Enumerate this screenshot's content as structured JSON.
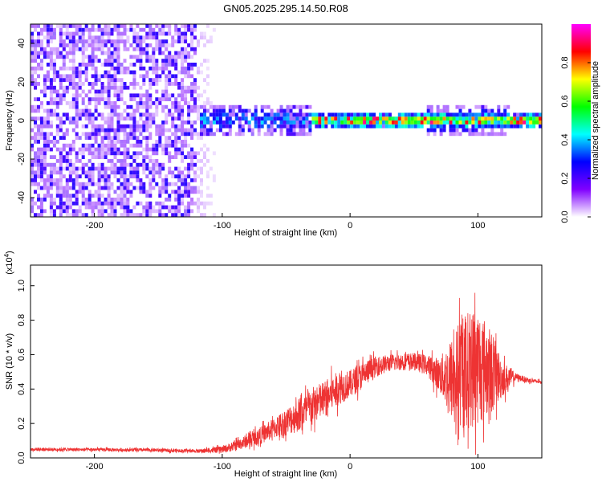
{
  "title": "GN05.2025.295.14.50.R08",
  "chart_data": [
    {
      "type": "heatmap",
      "name": "spectrogram",
      "xlabel": "Height of straight line (km)",
      "ylabel": "Frequency (Hz)",
      "xlim": [
        -250,
        150
      ],
      "ylim": [
        -50,
        50
      ],
      "xticks": [
        -200,
        -100,
        0,
        100
      ],
      "yticks": [
        -40,
        -20,
        0,
        20,
        40
      ],
      "colorbar": {
        "label": "Normalized spectral amplitude",
        "range": [
          0,
          1
        ],
        "ticks": [
          0.0,
          0.2,
          0.4,
          0.6,
          0.8
        ],
        "colors": [
          "#ffffff",
          "#8000ff",
          "#0000ff",
          "#00ffff",
          "#00ff00",
          "#ffff00",
          "#ff0000",
          "#ff00ff"
        ]
      },
      "features": [
        {
          "desc": "noise region",
          "x_range": [
            -250,
            -120
          ],
          "freq_range": [
            -50,
            50
          ],
          "amplitude": 0.15
        },
        {
          "desc": "fading noise",
          "x_range": [
            -120,
            -95
          ],
          "freq_range": [
            -50,
            50
          ],
          "amplitude": 0.05
        },
        {
          "desc": "broad signal band",
          "x_range": [
            -118,
            -30
          ],
          "freq_center": 0,
          "half_width_hz": 8,
          "amplitude": 0.35
        },
        {
          "desc": "narrow signal line",
          "x_range": [
            -30,
            150
          ],
          "freq_center": 0,
          "half_width_hz": 3,
          "amplitude": 0.9
        },
        {
          "desc": "broad signal band",
          "x_range": [
            60,
            125
          ],
          "freq_center": 0,
          "half_width_hz": 7,
          "amplitude": 0.4
        }
      ]
    },
    {
      "type": "line",
      "name": "snr",
      "xlabel": "Height of straight line (km)",
      "ylabel": "SNR (10 * v/v)",
      "y_multiplier": "(x10^4)",
      "multiplier_base": "(x10",
      "multiplier_exp": "4",
      "multiplier_close": ")",
      "xlim": [
        -250,
        150
      ],
      "ylim": [
        0,
        1.12
      ],
      "xticks": [
        -200,
        -100,
        0,
        100
      ],
      "yticks": [
        0.0,
        0.2,
        0.4,
        0.6,
        0.8,
        1.0
      ],
      "series": [
        {
          "name": "SNR",
          "color": "#ee3333",
          "x": [
            -250,
            -200,
            -150,
            -120,
            -100,
            -90,
            -80,
            -70,
            -60,
            -50,
            -40,
            -30,
            -20,
            -10,
            0,
            10,
            20,
            30,
            40,
            50,
            60,
            70,
            80,
            90,
            100,
            110,
            120,
            130,
            140,
            150
          ],
          "y": [
            0.05,
            0.048,
            0.045,
            0.04,
            0.048,
            0.07,
            0.1,
            0.13,
            0.17,
            0.21,
            0.25,
            0.3,
            0.34,
            0.4,
            0.43,
            0.48,
            0.53,
            0.55,
            0.56,
            0.56,
            0.54,
            0.48,
            0.46,
            0.5,
            0.54,
            0.5,
            0.46,
            0.47,
            0.45,
            0.44
          ],
          "noise_amp": [
            0.01,
            0.01,
            0.01,
            0.01,
            0.02,
            0.03,
            0.04,
            0.05,
            0.06,
            0.08,
            0.1,
            0.11,
            0.11,
            0.1,
            0.08,
            0.08,
            0.06,
            0.05,
            0.05,
            0.05,
            0.06,
            0.1,
            0.25,
            0.35,
            0.35,
            0.25,
            0.1,
            0.02,
            0.015,
            0.01
          ]
        }
      ]
    }
  ]
}
